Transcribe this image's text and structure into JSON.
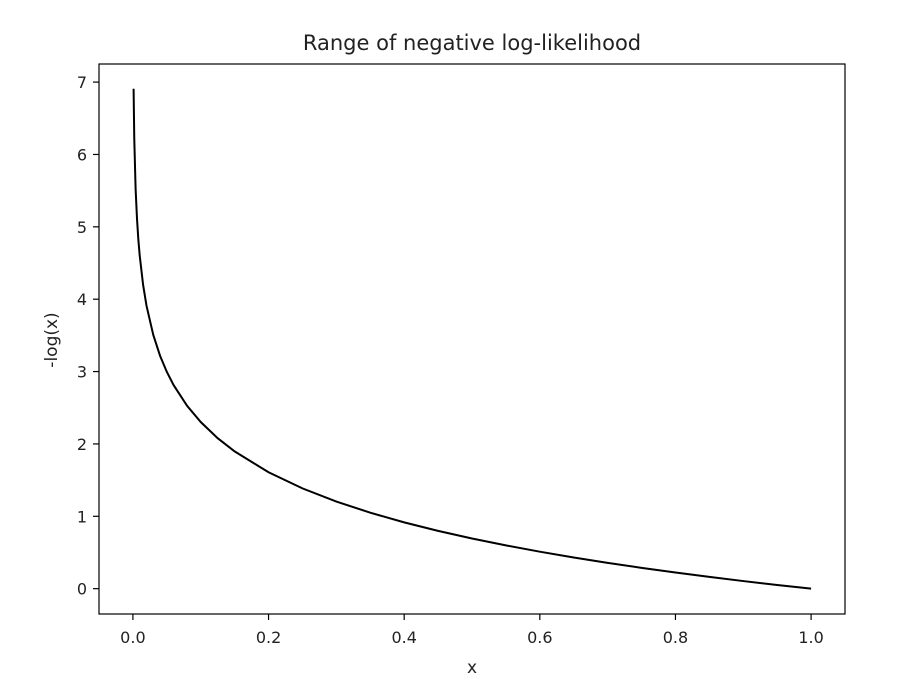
{
  "chart_data": {
    "type": "line",
    "title": "Range of negative log-likelihood",
    "xlabel": "x",
    "ylabel": "-log(x)",
    "xlim": [
      -0.05,
      1.05
    ],
    "ylim": [
      -0.35,
      7.25
    ],
    "xticks": [
      0.0,
      0.2,
      0.4,
      0.6,
      0.8,
      1.0
    ],
    "xtick_labels": [
      "0.0",
      "0.2",
      "0.4",
      "0.6",
      "0.8",
      "1.0"
    ],
    "yticks": [
      0,
      1,
      2,
      3,
      4,
      5,
      6,
      7
    ],
    "ytick_labels": [
      "0",
      "1",
      "2",
      "3",
      "4",
      "5",
      "6",
      "7"
    ],
    "grid": false,
    "series": [
      {
        "color": "#000000",
        "x": [
          0.001,
          0.002,
          0.004,
          0.006,
          0.008,
          0.01,
          0.015,
          0.02,
          0.03,
          0.04,
          0.05,
          0.06,
          0.08,
          0.1,
          0.125,
          0.15,
          0.2,
          0.25,
          0.3,
          0.35,
          0.4,
          0.45,
          0.5,
          0.55,
          0.6,
          0.65,
          0.7,
          0.75,
          0.8,
          0.85,
          0.9,
          0.95,
          1.0
        ],
        "y": [
          6.908,
          6.215,
          5.521,
          5.116,
          4.828,
          4.605,
          4.2,
          3.912,
          3.507,
          3.219,
          2.996,
          2.813,
          2.526,
          2.303,
          2.079,
          1.897,
          1.609,
          1.386,
          1.204,
          1.05,
          0.916,
          0.799,
          0.693,
          0.598,
          0.511,
          0.431,
          0.357,
          0.288,
          0.223,
          0.163,
          0.105,
          0.051,
          0.0
        ]
      }
    ]
  }
}
